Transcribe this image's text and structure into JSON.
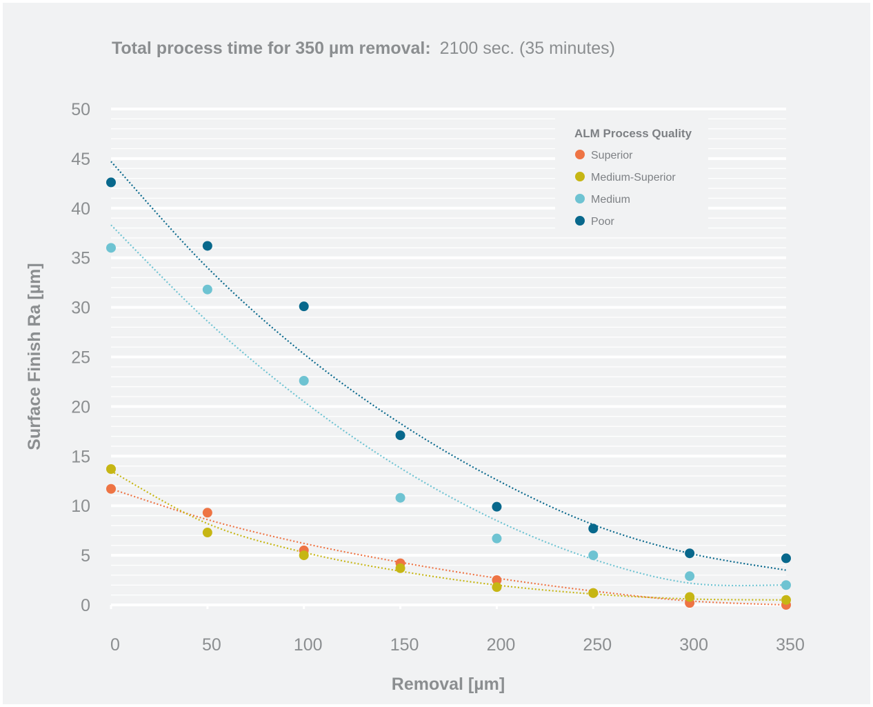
{
  "header": {
    "title_bold": "Total process time for 350 µm removal:",
    "title_rest": "2100 sec. (35 minutes)"
  },
  "chart_data": {
    "type": "scatter",
    "title": "Total process time for 350 µm removal: 2100 sec. (35 minutes)",
    "xlabel": "Removal [µm]",
    "ylabel": "Surface Finish Ra [µm]",
    "xlim": [
      0,
      350
    ],
    "ylim": [
      0,
      50
    ],
    "x_ticks": [
      0,
      50,
      100,
      150,
      200,
      250,
      300,
      350
    ],
    "y_ticks": [
      0,
      5,
      10,
      15,
      20,
      25,
      30,
      35,
      40,
      45,
      50
    ],
    "grid": true,
    "legend": {
      "title": "ALM Process Quality",
      "position": "top-right"
    },
    "trendlines": "dotted polynomial fit per series",
    "series": [
      {
        "name": "Superior",
        "color": "#ee7444",
        "points": [
          [
            0,
            11.7
          ],
          [
            50,
            9.3
          ],
          [
            100,
            5.5
          ],
          [
            150,
            4.2
          ],
          [
            200,
            2.5
          ],
          [
            250,
            1.2
          ],
          [
            300,
            0.2
          ],
          [
            350,
            0.0
          ]
        ],
        "trend": [
          [
            0,
            11.7
          ],
          [
            50,
            8.6
          ],
          [
            100,
            6.2
          ],
          [
            150,
            4.3
          ],
          [
            200,
            2.7
          ],
          [
            250,
            1.4
          ],
          [
            300,
            0.4
          ],
          [
            350,
            0.0
          ]
        ]
      },
      {
        "name": "Medium-Superior",
        "color": "#c6b614",
        "points": [
          [
            0,
            13.7
          ],
          [
            50,
            7.3
          ],
          [
            100,
            5.0
          ],
          [
            150,
            3.7
          ],
          [
            200,
            1.8
          ],
          [
            250,
            1.2
          ],
          [
            300,
            0.8
          ],
          [
            350,
            0.5
          ]
        ],
        "trend": [
          [
            0,
            13.5
          ],
          [
            50,
            8.2
          ],
          [
            100,
            5.3
          ],
          [
            150,
            3.4
          ],
          [
            200,
            2.0
          ],
          [
            250,
            1.1
          ],
          [
            300,
            0.6
          ],
          [
            350,
            0.5
          ]
        ]
      },
      {
        "name": "Medium",
        "color": "#6ec3d2",
        "points": [
          [
            0,
            36.0
          ],
          [
            50,
            31.8
          ],
          [
            100,
            22.6
          ],
          [
            150,
            10.8
          ],
          [
            200,
            6.7
          ],
          [
            250,
            5.0
          ],
          [
            300,
            2.9
          ],
          [
            350,
            2.0
          ]
        ],
        "trend": [
          [
            0,
            38.3
          ],
          [
            50,
            28.6
          ],
          [
            100,
            20.5
          ],
          [
            150,
            13.8
          ],
          [
            200,
            8.5
          ],
          [
            250,
            4.6
          ],
          [
            300,
            2.2
          ],
          [
            350,
            2.0
          ]
        ]
      },
      {
        "name": "Poor",
        "color": "#08688c",
        "points": [
          [
            0,
            42.6
          ],
          [
            50,
            36.2
          ],
          [
            100,
            30.1
          ],
          [
            150,
            17.1
          ],
          [
            200,
            9.9
          ],
          [
            250,
            7.7
          ],
          [
            300,
            5.2
          ],
          [
            350,
            4.7
          ]
        ],
        "trend": [
          [
            0,
            44.7
          ],
          [
            50,
            34.0
          ],
          [
            100,
            25.3
          ],
          [
            150,
            18.3
          ],
          [
            200,
            12.6
          ],
          [
            250,
            8.1
          ],
          [
            300,
            5.2
          ],
          [
            350,
            3.5
          ]
        ]
      }
    ]
  }
}
